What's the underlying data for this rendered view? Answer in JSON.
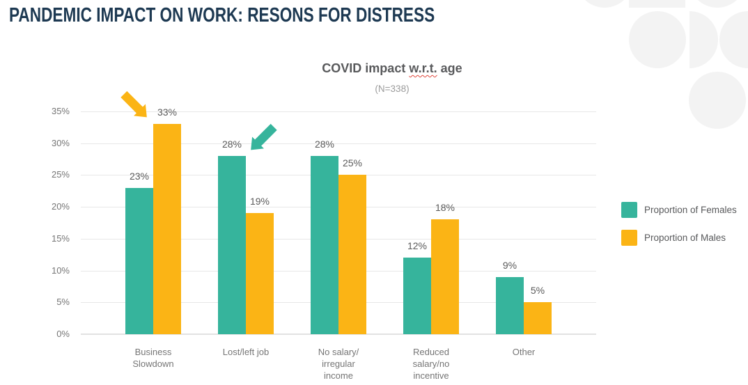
{
  "page": {
    "heading": "PANDEMIC IMPACT ON WORK: RESONS FOR DISTRESS"
  },
  "chart_data": {
    "type": "bar",
    "title": "COVID impact w.r.t. age",
    "title_parts": [
      "COVID impact ",
      "w.r.t.",
      " age"
    ],
    "subtitle": "(N=338)",
    "categories": [
      "Business\nSlowdown",
      "Lost/left job",
      "No salary/\nirregular\nincome",
      "Reduced\nsalary/no\nincentive",
      "Other"
    ],
    "series": [
      {
        "name": "Proportion of Females",
        "color": "#36b49c",
        "values": [
          23,
          28,
          28,
          12,
          9
        ]
      },
      {
        "name": "Proportion of Males",
        "color": "#fbb415",
        "values": [
          33,
          19,
          25,
          18,
          5
        ]
      }
    ],
    "value_suffix": "%",
    "ylim": [
      0,
      35
    ],
    "ytick_values": [
      0,
      5,
      10,
      15,
      20,
      25,
      30,
      35
    ],
    "grid": true,
    "legend_position": "right",
    "annotations": [
      {
        "shape": "arrow",
        "direction": "down-right",
        "color": "#fbb415",
        "series_index": 1,
        "category_index": 0,
        "target": "Males 33% Business Slowdown"
      },
      {
        "shape": "arrow",
        "direction": "down-left",
        "color": "#36b49c",
        "series_index": 0,
        "category_index": 1,
        "target": "Females 28% Lost/left job"
      }
    ]
  },
  "colors": {
    "heading": "#1d3952",
    "chart_title": "#58595b",
    "subtitle": "#9b9b9b",
    "axis_text": "#757575",
    "gridline": "#e7e7e7",
    "decoration": "#f3f3f3",
    "spellcheck_underline": "#e0473b"
  }
}
